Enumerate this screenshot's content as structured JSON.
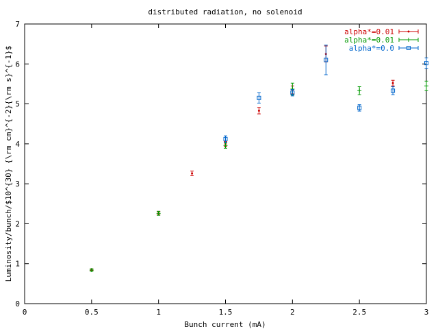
{
  "chart_data": {
    "type": "scatter",
    "title": "distributed radiation, no solenoid",
    "xlabel": "Bunch current (mA)",
    "ylabel": "Luminosity/bunch/$10^{30} {\\rm cm}^{-2}{\\rm s}^{-1}$",
    "xlim": [
      0,
      3
    ],
    "ylim": [
      0,
      7
    ],
    "x_ticks": [
      "0",
      "0.5",
      "1",
      "1.5",
      "2",
      "2.5",
      "3"
    ],
    "y_ticks": [
      "0",
      "1",
      "2",
      "3",
      "4",
      "5",
      "6",
      "7"
    ],
    "grid": false,
    "legend_position": "top-right",
    "series": [
      {
        "name": "alpha*=0.01",
        "color": "#cc0000",
        "marker": "dot",
        "points": [
          {
            "x": 0.5,
            "y": 0.85,
            "err": 0.02
          },
          {
            "x": 1.0,
            "y": 2.27,
            "err": 0.04
          },
          {
            "x": 1.25,
            "y": 3.26,
            "err": 0.06
          },
          {
            "x": 1.5,
            "y": 4.0,
            "err": 0.06
          },
          {
            "x": 1.75,
            "y": 4.83,
            "err": 0.08
          },
          {
            "x": 2.0,
            "y": 5.35,
            "err": 0.1
          },
          {
            "x": 2.25,
            "y": 6.25,
            "err": 0.2
          },
          {
            "x": 2.75,
            "y": 5.52,
            "err": 0.07
          }
        ]
      },
      {
        "name": "alpha*=0.01",
        "color": "#009900",
        "marker": "plus",
        "points": [
          {
            "x": 0.5,
            "y": 0.84,
            "err": 0.03
          },
          {
            "x": 1.0,
            "y": 2.26,
            "err": 0.05
          },
          {
            "x": 1.5,
            "y": 3.96,
            "err": 0.07
          },
          {
            "x": 2.0,
            "y": 5.37,
            "err": 0.15
          },
          {
            "x": 2.5,
            "y": 5.33,
            "err": 0.1
          },
          {
            "x": 3.0,
            "y": 5.45,
            "err": 0.12
          }
        ]
      },
      {
        "name": "alpha*=0.0",
        "color": "#0066cc",
        "marker": "square",
        "points": [
          {
            "x": 1.5,
            "y": 4.12,
            "err": 0.08
          },
          {
            "x": 1.75,
            "y": 5.15,
            "err": 0.13
          },
          {
            "x": 2.0,
            "y": 5.28,
            "err": 0.08
          },
          {
            "x": 2.25,
            "y": 6.1,
            "err": 0.37
          },
          {
            "x": 2.5,
            "y": 4.9,
            "err": 0.08
          },
          {
            "x": 2.75,
            "y": 5.33,
            "err": 0.1
          },
          {
            "x": 3.0,
            "y": 6.02,
            "err": 0.13
          }
        ]
      }
    ]
  }
}
